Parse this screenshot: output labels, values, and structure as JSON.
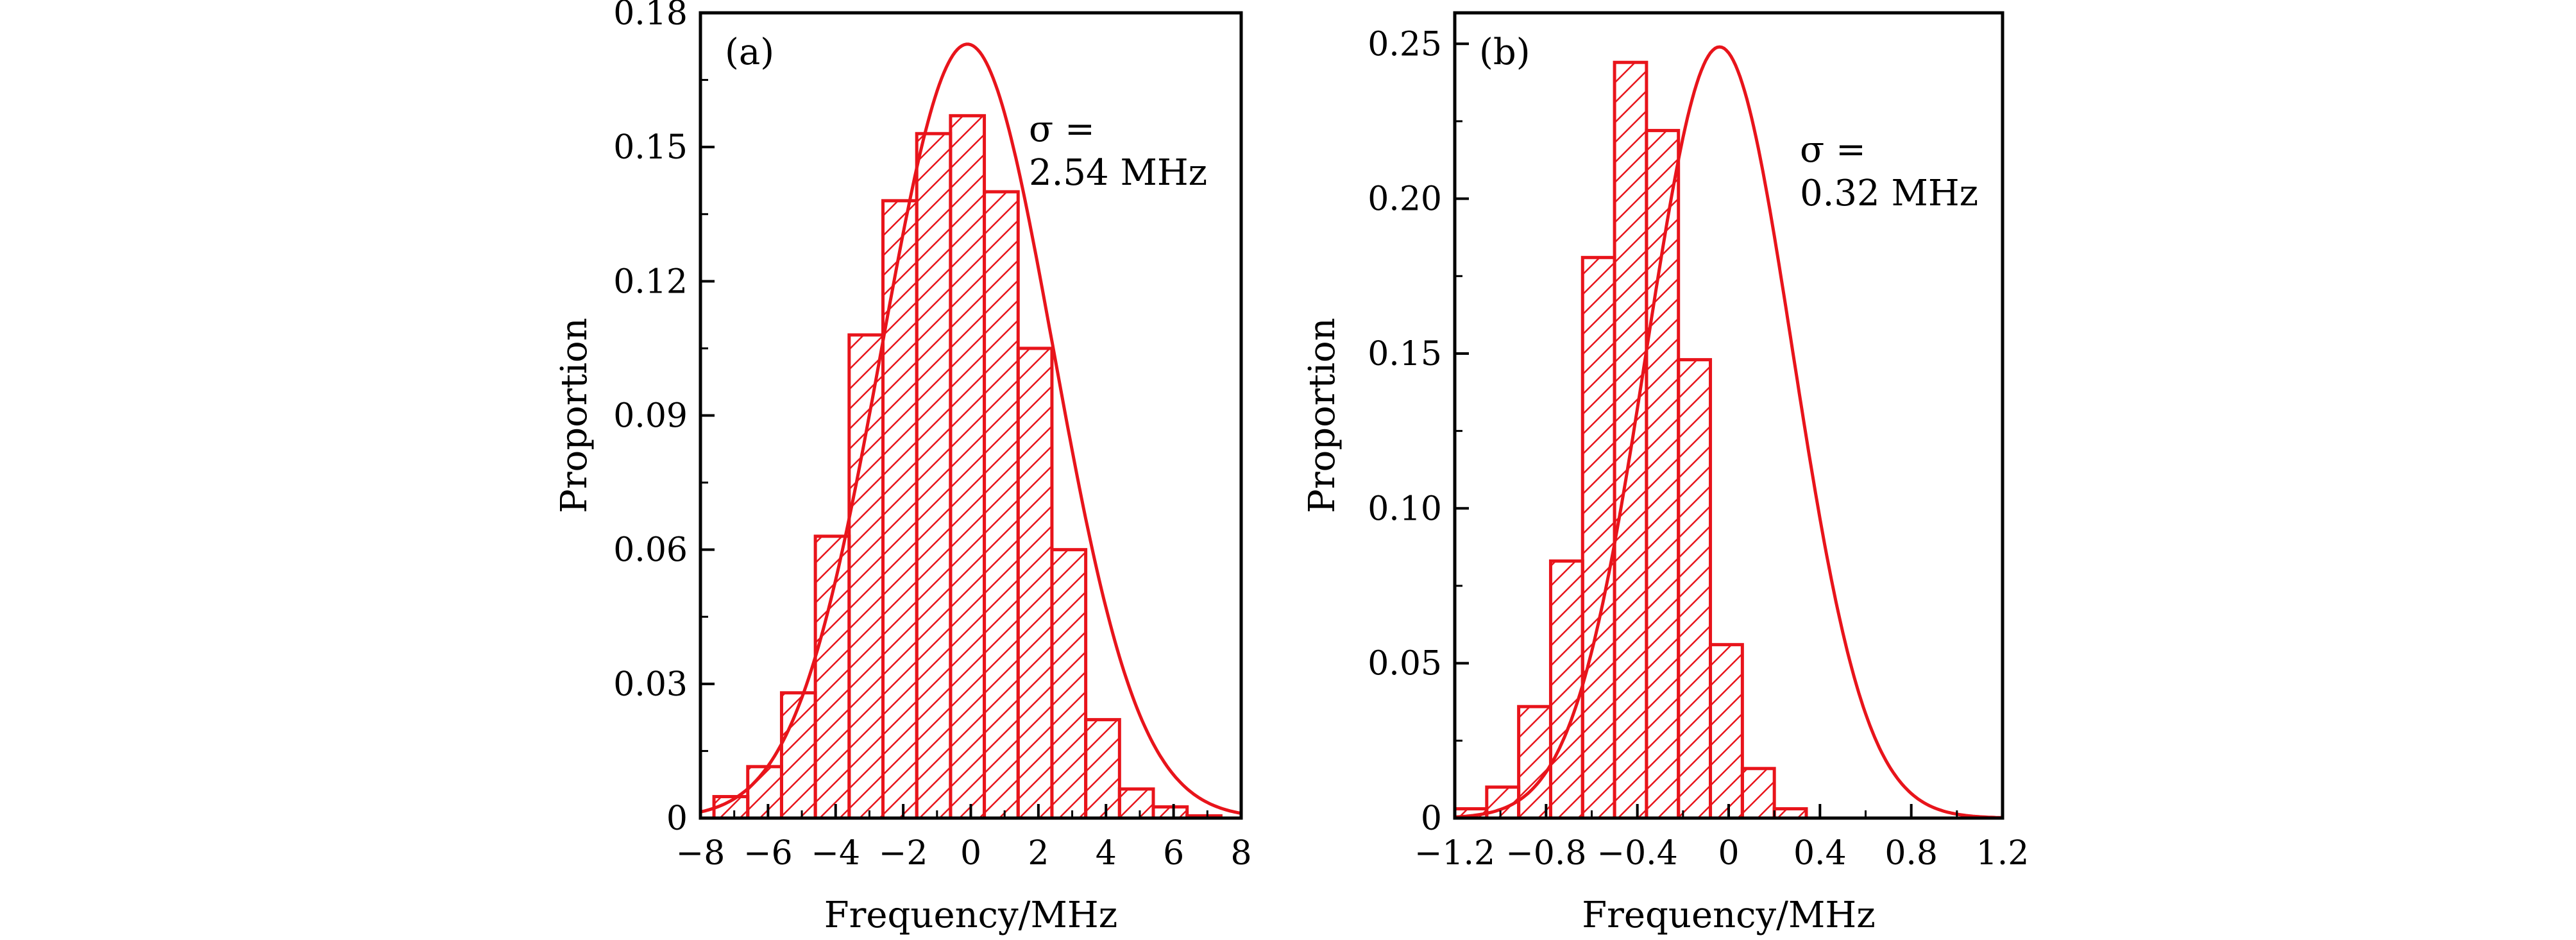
{
  "colors": {
    "bar": "#e8141b",
    "curve": "#e8141b",
    "axis": "#000000"
  },
  "chart_data": [
    {
      "type": "bar",
      "panel_label": "(a)",
      "annotation": {
        "line1": "σ =",
        "line2": "2.54 MHz"
      },
      "xlabel": "Frequency/MHz",
      "ylabel": "Proportion",
      "xlim": [
        -8,
        8
      ],
      "ylim": [
        0,
        0.18
      ],
      "xticks": [
        -8,
        -6,
        -4,
        -2,
        0,
        2,
        4,
        6,
        8
      ],
      "xtick_labels": [
        "−8",
        "−6",
        "−4",
        "−2",
        "0",
        "2",
        "4",
        "6",
        "8"
      ],
      "yticks": [
        0,
        0.03,
        0.06,
        0.09,
        0.12,
        0.15,
        0.18
      ],
      "ytick_labels": [
        "0",
        "0.03",
        "0.06",
        "0.09",
        "0.12",
        "0.15",
        "0.18"
      ],
      "bin_edges": [
        -7.6,
        -6.6,
        -5.6,
        -4.6,
        -3.6,
        -2.6,
        -1.6,
        -0.6,
        0.4,
        1.4,
        2.4,
        3.4,
        4.4,
        5.4,
        6.4,
        7.4
      ],
      "values": [
        0.0048,
        0.0115,
        0.028,
        0.063,
        0.108,
        0.138,
        0.153,
        0.157,
        0.14,
        0.105,
        0.06,
        0.022,
        0.0065,
        0.0025,
        0.0005
      ],
      "fit": {
        "mean": -0.1,
        "sigma": 2.54,
        "peak": 0.173
      }
    },
    {
      "type": "bar",
      "panel_label": "(b)",
      "annotation": {
        "line1": "σ =",
        "line2": "0.32 MHz"
      },
      "xlabel": "Frequency/MHz",
      "ylabel": "Proportion",
      "xlim": [
        -1.2,
        1.2
      ],
      "ylim": [
        0,
        0.26
      ],
      "xticks": [
        -1.2,
        -0.8,
        -0.4,
        0,
        0.4,
        0.8,
        1.2
      ],
      "xtick_labels": [
        "−1.2",
        "−0.8",
        "−0.4",
        "0",
        "0.4",
        "0.8",
        "1.2"
      ],
      "yticks": [
        0,
        0.05,
        0.1,
        0.15,
        0.2,
        0.25
      ],
      "ytick_labels": [
        "0",
        "0.05",
        "0.10",
        "0.15",
        "0.20",
        "0.25"
      ],
      "bin_edges": [
        -1.2,
        -1.06,
        -0.92,
        -0.78,
        -0.64,
        -0.5,
        -0.36,
        -0.22,
        -0.08,
        0.06,
        0.2,
        0.34,
        0.48,
        0.62,
        0.76,
        0.9,
        1.04
      ],
      "values": [
        0.003,
        0.01,
        0.036,
        0.083,
        0.181,
        0.244,
        0.222,
        0.148,
        0.056,
        0.016,
        0.003,
        0.0,
        0.0,
        0.0,
        0.0,
        0.0
      ],
      "fit": {
        "mean": -0.04,
        "sigma": 0.32,
        "peak": 0.249
      }
    }
  ]
}
